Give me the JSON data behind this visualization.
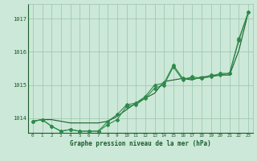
{
  "background_color": "#cce8d8",
  "plot_bg_color": "#cce8d8",
  "grid_color": "#99c4aa",
  "line_color_dark": "#1a5c2a",
  "line_color_mid": "#2d8a4a",
  "xlabel": "Graphe pression niveau de la mer (hPa)",
  "xlim": [
    -0.5,
    23.5
  ],
  "ylim": [
    1013.55,
    1017.45
  ],
  "yticks": [
    1014,
    1015,
    1016,
    1017
  ],
  "xticks": [
    0,
    1,
    2,
    3,
    4,
    5,
    6,
    7,
    8,
    9,
    10,
    11,
    12,
    13,
    14,
    15,
    16,
    17,
    18,
    19,
    20,
    21,
    22,
    23
  ],
  "series1": [
    1013.9,
    1013.95,
    1013.95,
    1013.9,
    1013.85,
    1013.85,
    1013.85,
    1013.85,
    1013.9,
    1014.05,
    1014.25,
    1014.45,
    1014.6,
    1014.75,
    1015.1,
    1015.15,
    1015.2,
    1015.15,
    1015.25,
    1015.25,
    1015.3,
    1015.3,
    1016.05,
    1017.2
  ],
  "series2": [
    1013.9,
    1013.95,
    1013.75,
    1013.6,
    1013.65,
    1013.6,
    1013.6,
    1013.6,
    1013.8,
    1013.95,
    1014.35,
    1014.4,
    1014.6,
    1014.9,
    1015.0,
    1015.55,
    1015.15,
    1015.25,
    1015.2,
    1015.3,
    1015.3,
    1015.35,
    1016.35,
    1017.2
  ],
  "series3": [
    1013.9,
    1013.95,
    1013.75,
    1013.6,
    1013.65,
    1013.6,
    1013.6,
    1013.6,
    1013.9,
    1014.1,
    1014.4,
    1014.45,
    1014.65,
    1015.0,
    1015.05,
    1015.6,
    1015.2,
    1015.2,
    1015.2,
    1015.25,
    1015.35,
    1015.35,
    1016.4,
    1017.2
  ],
  "figwidth": 3.2,
  "figheight": 2.0,
  "dpi": 100
}
